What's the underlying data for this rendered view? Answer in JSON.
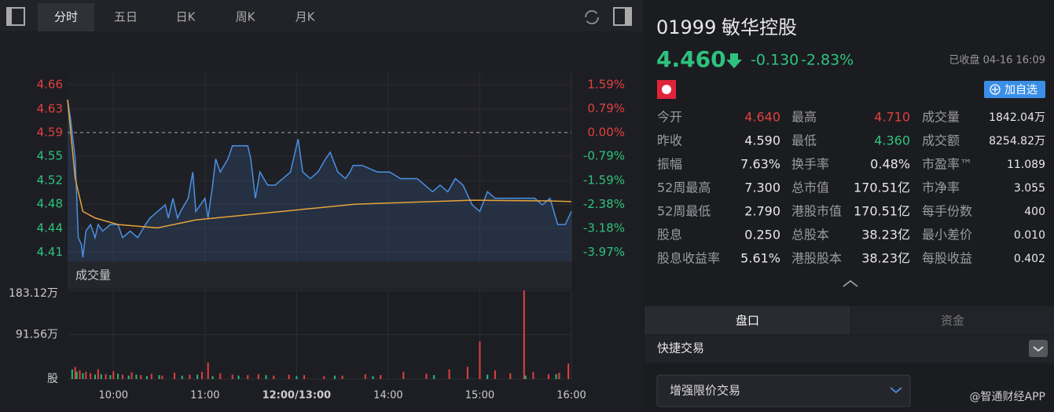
{
  "toolbar": {
    "tabs": [
      "分时",
      "五日",
      "日K",
      "周K",
      "月K"
    ]
  },
  "chart_data": [
    {
      "type": "line",
      "xlim": [
        0,
        330
      ],
      "ylim": [
        4.394,
        4.682
      ],
      "yticks": [
        {
          "value": 4.663,
          "label": "4.66"
        },
        {
          "value": 4.626,
          "label": "4.63"
        },
        {
          "value": 4.59,
          "label": "4.59"
        },
        {
          "value": 4.554,
          "label": "4.55"
        },
        {
          "value": 4.517,
          "label": "4.52"
        },
        {
          "value": 4.481,
          "label": "4.48"
        },
        {
          "value": 4.444,
          "label": "4.44"
        },
        {
          "value": 4.408,
          "label": "4.41"
        }
      ],
      "y2lim": [
        -4.27,
        2.0
      ],
      "y2ticks": [
        {
          "value": 1.59,
          "label": "1.59%"
        },
        {
          "value": 0.79,
          "label": "0.79%"
        },
        {
          "value": 0,
          "label": "0.00%"
        },
        {
          "value": -0.79,
          "label": "-0.79%"
        },
        {
          "value": -1.59,
          "label": "-1.59%"
        },
        {
          "value": -2.38,
          "label": "-2.38%"
        },
        {
          "value": -3.18,
          "label": "-3.18%"
        },
        {
          "value": -3.97,
          "label": "-3.97%"
        }
      ],
      "grid": true,
      "series": [
        {
          "color": "#4a90e2",
          "fill": true,
          "x": [
            0,
            2,
            5,
            7,
            9,
            10,
            12,
            15,
            18,
            20,
            23,
            28,
            33,
            36,
            41,
            46,
            51,
            54,
            59,
            64,
            66,
            69,
            72,
            74,
            79,
            82,
            84,
            90,
            92,
            95,
            97,
            100,
            105,
            108,
            113,
            118,
            120,
            123,
            126,
            131,
            136,
            141,
            146,
            151,
            154,
            159,
            164,
            169,
            172,
            177,
            182,
            185,
            187,
            193,
            203,
            211,
            218,
            223,
            229,
            234,
            239,
            244,
            249,
            254,
            259,
            265,
            270,
            275,
            280,
            285,
            290,
            296,
            301,
            306,
            311,
            316,
            321,
            326,
            330
          ],
          "values": [
            4.64,
            4.61,
            4.55,
            4.43,
            4.42,
            4.4,
            4.44,
            4.45,
            4.43,
            4.45,
            4.44,
            4.45,
            4.45,
            4.43,
            4.44,
            4.43,
            4.45,
            4.46,
            4.47,
            4.48,
            4.46,
            4.49,
            4.46,
            4.47,
            4.49,
            4.53,
            4.47,
            4.49,
            4.46,
            4.51,
            4.55,
            4.53,
            4.55,
            4.57,
            4.57,
            4.57,
            4.55,
            4.49,
            4.53,
            4.51,
            4.51,
            4.52,
            4.53,
            4.58,
            4.53,
            4.52,
            4.53,
            4.55,
            4.56,
            4.53,
            4.52,
            4.53,
            4.54,
            4.54,
            4.53,
            4.53,
            4.52,
            4.52,
            4.52,
            4.51,
            4.5,
            4.51,
            4.5,
            4.52,
            4.51,
            4.48,
            4.47,
            4.5,
            4.49,
            4.49,
            4.49,
            4.49,
            4.49,
            4.49,
            4.48,
            4.49,
            4.45,
            4.45,
            4.47
          ]
        },
        {
          "color": "#e8a33a",
          "fill": false,
          "x": [
            0,
            5,
            10,
            18,
            33,
            59,
            84,
            110,
            136,
            162,
            188,
            213,
            265,
            316,
            330
          ],
          "values": [
            4.64,
            4.52,
            4.47,
            4.46,
            4.45,
            4.445,
            4.457,
            4.463,
            4.469,
            4.475,
            4.481,
            4.483,
            4.487,
            4.486,
            4.485
          ]
        }
      ]
    },
    {
      "type": "bar",
      "title": "成交量",
      "xlim": [
        0,
        330
      ],
      "ylim": [
        0,
        1831200
      ],
      "yticks": [
        {
          "value": 1831200,
          "label": "183.12万"
        },
        {
          "value": 915600,
          "label": "91.56万"
        },
        {
          "value": 0,
          "label": "股"
        }
      ],
      "xticks": [
        {
          "value": 30,
          "label": "10:00"
        },
        {
          "value": 90,
          "label": "11:00"
        },
        {
          "value": 150,
          "label": "12:00/13:00"
        },
        {
          "value": 210,
          "label": "14:00"
        },
        {
          "value": 270,
          "label": "15:00"
        },
        {
          "value": 330,
          "label": "16:00"
        }
      ],
      "grid": true,
      "series": [
        {
          "color": "#e0403f",
          "x": [
            5,
            8,
            12,
            15,
            20,
            25,
            30,
            36,
            42,
            48,
            55,
            62,
            70,
            80,
            88,
            92,
            100,
            108,
            118,
            125,
            135,
            145,
            155,
            168,
            180,
            195,
            205,
            220,
            235,
            250,
            262,
            270,
            280,
            290,
            299,
            305,
            315,
            322,
            328
          ],
          "values": [
            250000,
            180000,
            150000,
            120000,
            200000,
            100000,
            160000,
            90000,
            140000,
            80000,
            110000,
            70000,
            130000,
            90000,
            150000,
            340000,
            120000,
            90000,
            80000,
            100000,
            70000,
            90000,
            80000,
            60000,
            70000,
            100000,
            80000,
            150000,
            110000,
            200000,
            250000,
            778000,
            180000,
            120000,
            1831200,
            150000,
            100000,
            130000,
            320000
          ]
        },
        {
          "color": "#2db87a",
          "x": [
            3,
            6,
            10,
            18,
            22,
            28,
            33,
            40,
            45,
            52,
            60,
            75,
            85,
            95,
            112,
            130,
            150,
            175,
            200,
            240,
            275,
            300,
            320
          ],
          "values": [
            200000,
            150000,
            120000,
            90000,
            100000,
            80000,
            110000,
            70000,
            90000,
            60000,
            80000,
            70000,
            90000,
            60000,
            70000,
            80000,
            60000,
            70000,
            60000,
            80000,
            90000,
            70000,
            100000
          ]
        }
      ]
    }
  ],
  "quote": {
    "code": "01999",
    "name": "敏华控股",
    "price": "4.460",
    "change": "-0.130",
    "change_pct": "-2.83%",
    "status": "已收盘 04-16 16:09",
    "watch_button": "加自选",
    "stats": [
      [
        "今开",
        "4.640",
        "最高",
        "4.710",
        "成交量",
        "1842.04万"
      ],
      [
        "昨收",
        "4.590",
        "最低",
        "4.360",
        "成交额",
        "8254.82万"
      ],
      [
        "振幅",
        "7.63%",
        "换手率",
        "0.48%",
        "市盈率™",
        "11.089"
      ],
      [
        "52周最高",
        "7.300",
        "总市值",
        "170.51亿",
        "市净率",
        "3.055"
      ],
      [
        "52周最低",
        "2.790",
        "港股市值",
        "170.51亿",
        "每手份数",
        "400"
      ],
      [
        "股息",
        "0.250",
        "总股本",
        "38.23亿",
        "最小差价",
        "0.010"
      ],
      [
        "股息收益率",
        "5.61%",
        "港股股本",
        "38.23亿",
        "每股收益",
        "0.402"
      ]
    ],
    "tabs": [
      "盘口",
      "资金"
    ],
    "quick_trade": "快捷交易",
    "order_type": "增强限价交易"
  },
  "watermark": "@智通财经APP"
}
